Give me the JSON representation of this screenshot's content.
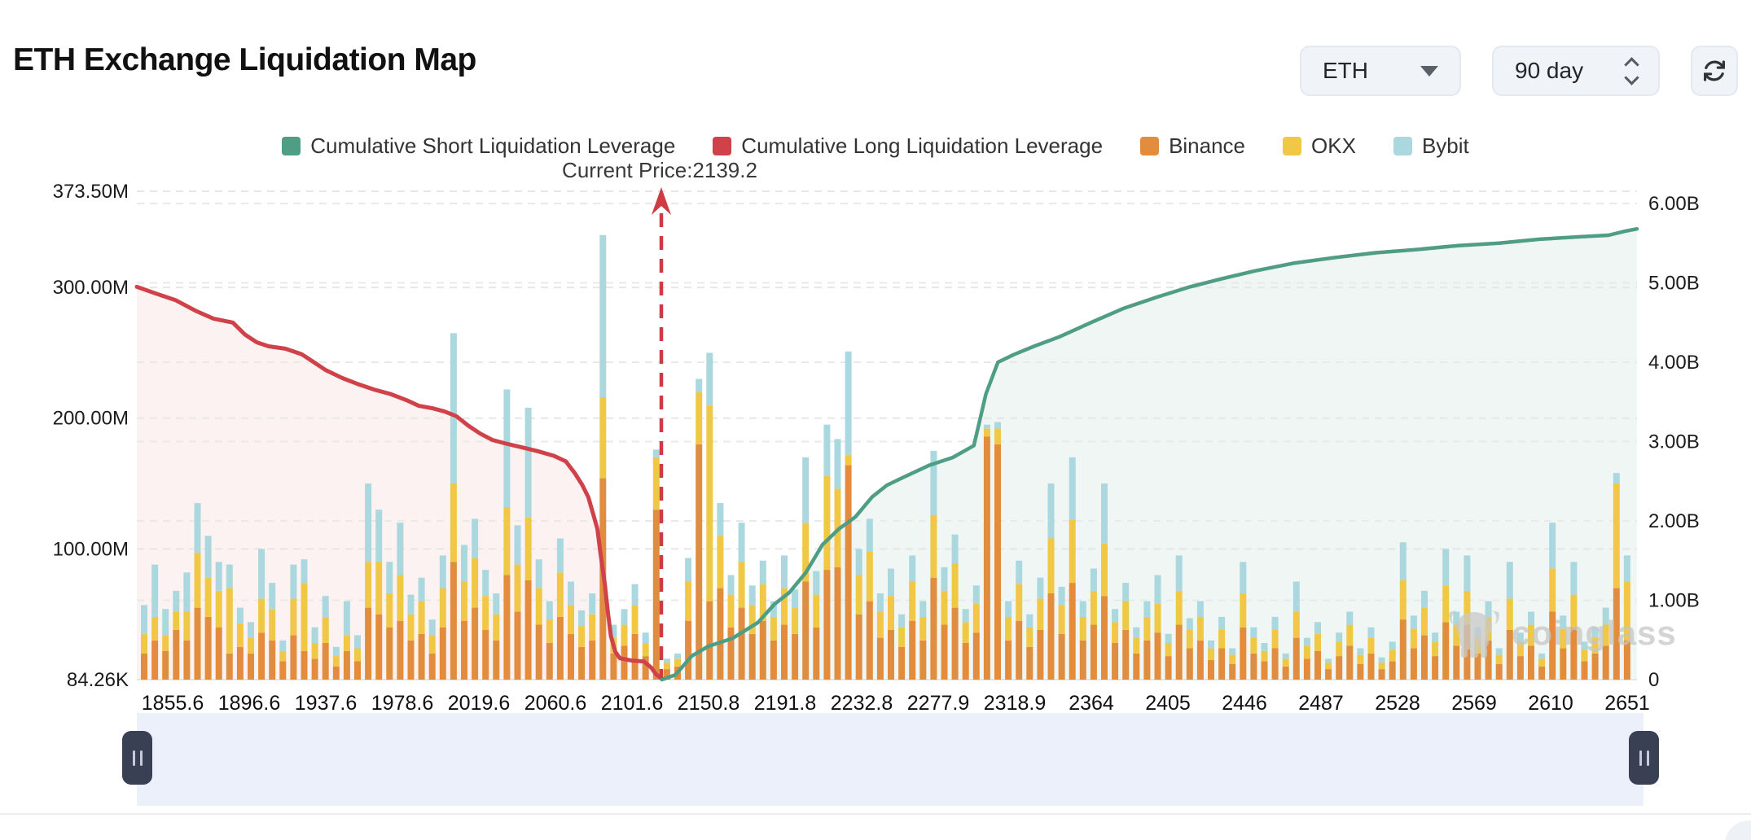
{
  "header": {
    "title": "ETH Exchange Liquidation Map"
  },
  "controls": {
    "symbol_select": {
      "value": "ETH"
    },
    "range_select": {
      "value": "90 day"
    }
  },
  "legend": {
    "items": [
      {
        "label": "Cumulative Short Liquidation Leverage",
        "color": "#4f9d85"
      },
      {
        "label": "Cumulative Long Liquidation Leverage",
        "color": "#d0424a"
      },
      {
        "label": "Binance",
        "color": "#e28d3d"
      },
      {
        "label": "OKX",
        "color": "#f1c845"
      },
      {
        "label": "Bybit",
        "color": "#aad8de"
      }
    ]
  },
  "annotation": {
    "current_price_label": "Current Price:2139.2",
    "current_price": 2139.2
  },
  "watermark": {
    "text": "coinglass"
  },
  "chart_data": {
    "type": "mixed-bar-line",
    "title": "ETH Exchange Liquidation Map",
    "grid": true,
    "legend_position": "top-center",
    "left_axis": {
      "unit": "USD",
      "ticks": [
        {
          "label": "373.50M",
          "value": 373.5
        },
        {
          "label": "300.00M",
          "value": 300
        },
        {
          "label": "200.00M",
          "value": 200
        },
        {
          "label": "100.00M",
          "value": 100
        },
        {
          "label": "84.26K",
          "value": 0
        }
      ],
      "ylim": [
        0,
        373.5
      ]
    },
    "right_axis": {
      "unit": "USD",
      "ticks": [
        {
          "label": "6.00B",
          "value": 6
        },
        {
          "label": "5.00B",
          "value": 5
        },
        {
          "label": "4.00B",
          "value": 4
        },
        {
          "label": "3.00B",
          "value": 3
        },
        {
          "label": "2.00B",
          "value": 2
        },
        {
          "label": "1.00B",
          "value": 1
        },
        {
          "label": "0",
          "value": 0
        }
      ],
      "ylim": [
        0,
        6.18
      ]
    },
    "x_axis": {
      "kind": "price-levels",
      "labels": [
        "1855.6",
        "1896.6",
        "1937.6",
        "1978.6",
        "2019.6",
        "2060.6",
        "2101.6",
        "2150.8",
        "2191.8",
        "2232.8",
        "2277.9",
        "2318.9",
        "2364",
        "2405",
        "2446",
        "2487",
        "2528",
        "2569",
        "2610",
        "2651"
      ],
      "price_range": [
        1845,
        2655
      ]
    },
    "bars": {
      "unit": "millions USD",
      "stack_order": [
        "Binance",
        "OKX",
        "Bybit"
      ],
      "colors": {
        "Binance": "#e28d3d",
        "OKX": "#f1c845",
        "Bybit": "#aad8de"
      },
      "values": [
        [
          20,
          15,
          22
        ],
        [
          30,
          18,
          40
        ],
        [
          22,
          12,
          20
        ],
        [
          38,
          14,
          16
        ],
        [
          30,
          22,
          30
        ],
        [
          55,
          42,
          38
        ],
        [
          48,
          30,
          32
        ],
        [
          40,
          28,
          22
        ],
        [
          20,
          50,
          18
        ],
        [
          25,
          18,
          12
        ],
        [
          20,
          12,
          12
        ],
        [
          36,
          26,
          38
        ],
        [
          30,
          24,
          20
        ],
        [
          14,
          8,
          8
        ],
        [
          34,
          28,
          26
        ],
        [
          22,
          52,
          18
        ],
        [
          16,
          12,
          12
        ],
        [
          28,
          20,
          16
        ],
        [
          10,
          8,
          7
        ],
        [
          22,
          12,
          26
        ],
        [
          14,
          10,
          10
        ],
        [
          55,
          35,
          60
        ],
        [
          50,
          40,
          40
        ],
        [
          40,
          26,
          24
        ],
        [
          45,
          35,
          40
        ],
        [
          30,
          20,
          15
        ],
        [
          35,
          25,
          18
        ],
        [
          20,
          14,
          12
        ],
        [
          40,
          30,
          25
        ],
        [
          90,
          60,
          115
        ],
        [
          45,
          30,
          28
        ],
        [
          55,
          38,
          30
        ],
        [
          38,
          26,
          20
        ],
        [
          30,
          20,
          16
        ],
        [
          80,
          52,
          90
        ],
        [
          52,
          36,
          30
        ],
        [
          76,
          48,
          84
        ],
        [
          42,
          28,
          22
        ],
        [
          28,
          18,
          14
        ],
        [
          48,
          34,
          26
        ],
        [
          35,
          22,
          18
        ],
        [
          25,
          16,
          12
        ],
        [
          30,
          20,
          16
        ],
        [
          154,
          62,
          124
        ],
        [
          20,
          12,
          10
        ],
        [
          26,
          16,
          12
        ],
        [
          35,
          22,
          16
        ],
        [
          18,
          10,
          8
        ],
        [
          130,
          40,
          6
        ],
        [
          8,
          5,
          3
        ],
        [
          10,
          6,
          4
        ],
        [
          45,
          30,
          18
        ],
        [
          180,
          40,
          10
        ],
        [
          60,
          150,
          40
        ],
        [
          70,
          40,
          25
        ],
        [
          40,
          25,
          15
        ],
        [
          55,
          35,
          30
        ],
        [
          35,
          22,
          15
        ],
        [
          45,
          28,
          18
        ],
        [
          30,
          18,
          12
        ],
        [
          42,
          28,
          25
        ],
        [
          35,
          20,
          14
        ],
        [
          75,
          45,
          50
        ],
        [
          40,
          25,
          18
        ],
        [
          84,
          72,
          39
        ],
        [
          86,
          60,
          38
        ],
        [
          164,
          8,
          79
        ],
        [
          50,
          30,
          20
        ],
        [
          60,
          38,
          25
        ],
        [
          32,
          20,
          14
        ],
        [
          38,
          26,
          21
        ],
        [
          25,
          15,
          10
        ],
        [
          45,
          30,
          20
        ],
        [
          30,
          18,
          12
        ],
        [
          78,
          48,
          49
        ],
        [
          42,
          26,
          18
        ],
        [
          55,
          34,
          22
        ],
        [
          28,
          16,
          10
        ],
        [
          36,
          22,
          14
        ],
        [
          186,
          6,
          3
        ],
        [
          180,
          12,
          5
        ],
        [
          30,
          18,
          12
        ],
        [
          45,
          28,
          18
        ],
        [
          25,
          15,
          10
        ],
        [
          38,
          24,
          16
        ],
        [
          66,
          42,
          42
        ],
        [
          35,
          22,
          14
        ],
        [
          74,
          48,
          48
        ],
        [
          30,
          18,
          12
        ],
        [
          42,
          26,
          17
        ],
        [
          64,
          40,
          46
        ],
        [
          28,
          16,
          10
        ],
        [
          38,
          22,
          14
        ],
        [
          20,
          12,
          8
        ],
        [
          30,
          18,
          12
        ],
        [
          36,
          22,
          22
        ],
        [
          18,
          10,
          7
        ],
        [
          42,
          26,
          27
        ],
        [
          24,
          14,
          9
        ],
        [
          30,
          18,
          12
        ],
        [
          15,
          9,
          6
        ],
        [
          24,
          14,
          10
        ],
        [
          12,
          7,
          5
        ],
        [
          40,
          26,
          24
        ],
        [
          20,
          12,
          8
        ],
        [
          14,
          8,
          6
        ],
        [
          24,
          14,
          10
        ],
        [
          10,
          6,
          4
        ],
        [
          32,
          20,
          23
        ],
        [
          16,
          10,
          6
        ],
        [
          22,
          13,
          9
        ],
        [
          8,
          5,
          3
        ],
        [
          18,
          11,
          7
        ],
        [
          26,
          16,
          10
        ],
        [
          12,
          7,
          5
        ],
        [
          20,
          12,
          8
        ],
        [
          8,
          5,
          4
        ],
        [
          14,
          9,
          6
        ],
        [
          46,
          30,
          29
        ],
        [
          24,
          15,
          10
        ],
        [
          34,
          21,
          13
        ],
        [
          18,
          11,
          7
        ],
        [
          44,
          28,
          28
        ],
        [
          26,
          16,
          10
        ],
        [
          42,
          26,
          27
        ],
        [
          20,
          12,
          8
        ],
        [
          30,
          18,
          12
        ],
        [
          12,
          7,
          5
        ],
        [
          38,
          24,
          28
        ],
        [
          18,
          11,
          7
        ],
        [
          26,
          16,
          10
        ],
        [
          10,
          6,
          4
        ],
        [
          52,
          33,
          35
        ],
        [
          24,
          15,
          10
        ],
        [
          40,
          25,
          25
        ],
        [
          14,
          9,
          6
        ],
        [
          20,
          12,
          8
        ],
        [
          26,
          16,
          13
        ],
        [
          70,
          80,
          8
        ],
        [
          30,
          45,
          20
        ]
      ]
    },
    "long_cumulative": {
      "name": "Cumulative Long Liquidation Leverage",
      "unit": "billions USD",
      "color": "#d0424a",
      "points_fx_value": [
        [
          0,
          4.95
        ],
        [
          0.012,
          4.87
        ],
        [
          0.026,
          4.78
        ],
        [
          0.039,
          4.65
        ],
        [
          0.051,
          4.55
        ],
        [
          0.064,
          4.5
        ],
        [
          0.072,
          4.35
        ],
        [
          0.08,
          4.25
        ],
        [
          0.088,
          4.2
        ],
        [
          0.099,
          4.17
        ],
        [
          0.11,
          4.1
        ],
        [
          0.118,
          4.0
        ],
        [
          0.126,
          3.9
        ],
        [
          0.137,
          3.8
        ],
        [
          0.148,
          3.72
        ],
        [
          0.159,
          3.65
        ],
        [
          0.169,
          3.6
        ],
        [
          0.18,
          3.52
        ],
        [
          0.188,
          3.45
        ],
        [
          0.197,
          3.42
        ],
        [
          0.205,
          3.38
        ],
        [
          0.213,
          3.32
        ],
        [
          0.221,
          3.2
        ],
        [
          0.229,
          3.1
        ],
        [
          0.237,
          3.02
        ],
        [
          0.245,
          2.98
        ],
        [
          0.256,
          2.93
        ],
        [
          0.267,
          2.88
        ],
        [
          0.278,
          2.82
        ],
        [
          0.286,
          2.75
        ],
        [
          0.292,
          2.6
        ],
        [
          0.297,
          2.45
        ],
        [
          0.301,
          2.3
        ],
        [
          0.304,
          2.1
        ],
        [
          0.307,
          1.9
        ],
        [
          0.309,
          1.6
        ],
        [
          0.312,
          1.2
        ],
        [
          0.314,
          0.85
        ],
        [
          0.316,
          0.55
        ],
        [
          0.319,
          0.35
        ],
        [
          0.322,
          0.27
        ],
        [
          0.33,
          0.24
        ],
        [
          0.338,
          0.23
        ],
        [
          0.343,
          0.15
        ],
        [
          0.346,
          0.07
        ],
        [
          0.35,
          0.01
        ]
      ]
    },
    "short_cumulative": {
      "name": "Cumulative Short Liquidation Leverage",
      "unit": "billions USD",
      "color": "#4f9d85",
      "points_fx_value": [
        [
          0.35,
          0
        ],
        [
          0.359,
          0.06
        ],
        [
          0.37,
          0.3
        ],
        [
          0.381,
          0.42
        ],
        [
          0.397,
          0.52
        ],
        [
          0.414,
          0.72
        ],
        [
          0.425,
          0.95
        ],
        [
          0.435,
          1.1
        ],
        [
          0.446,
          1.35
        ],
        [
          0.457,
          1.7
        ],
        [
          0.468,
          1.9
        ],
        [
          0.479,
          2.05
        ],
        [
          0.49,
          2.3
        ],
        [
          0.5,
          2.45
        ],
        [
          0.511,
          2.55
        ],
        [
          0.528,
          2.7
        ],
        [
          0.544,
          2.8
        ],
        [
          0.558,
          2.95
        ],
        [
          0.566,
          3.6
        ],
        [
          0.574,
          4.0
        ],
        [
          0.585,
          4.1
        ],
        [
          0.598,
          4.2
        ],
        [
          0.615,
          4.32
        ],
        [
          0.636,
          4.5
        ],
        [
          0.658,
          4.68
        ],
        [
          0.68,
          4.82
        ],
        [
          0.702,
          4.95
        ],
        [
          0.723,
          5.05
        ],
        [
          0.745,
          5.15
        ],
        [
          0.772,
          5.25
        ],
        [
          0.799,
          5.32
        ],
        [
          0.826,
          5.38
        ],
        [
          0.853,
          5.42
        ],
        [
          0.881,
          5.47
        ],
        [
          0.908,
          5.5
        ],
        [
          0.935,
          5.55
        ],
        [
          0.962,
          5.58
        ],
        [
          0.981,
          5.6
        ],
        [
          0.992,
          5.65
        ],
        [
          1,
          5.68
        ]
      ]
    },
    "current_price_line": {
      "value": 2139.2,
      "color": "#ce3b43",
      "style": "dashed-vertical-arrow"
    }
  }
}
